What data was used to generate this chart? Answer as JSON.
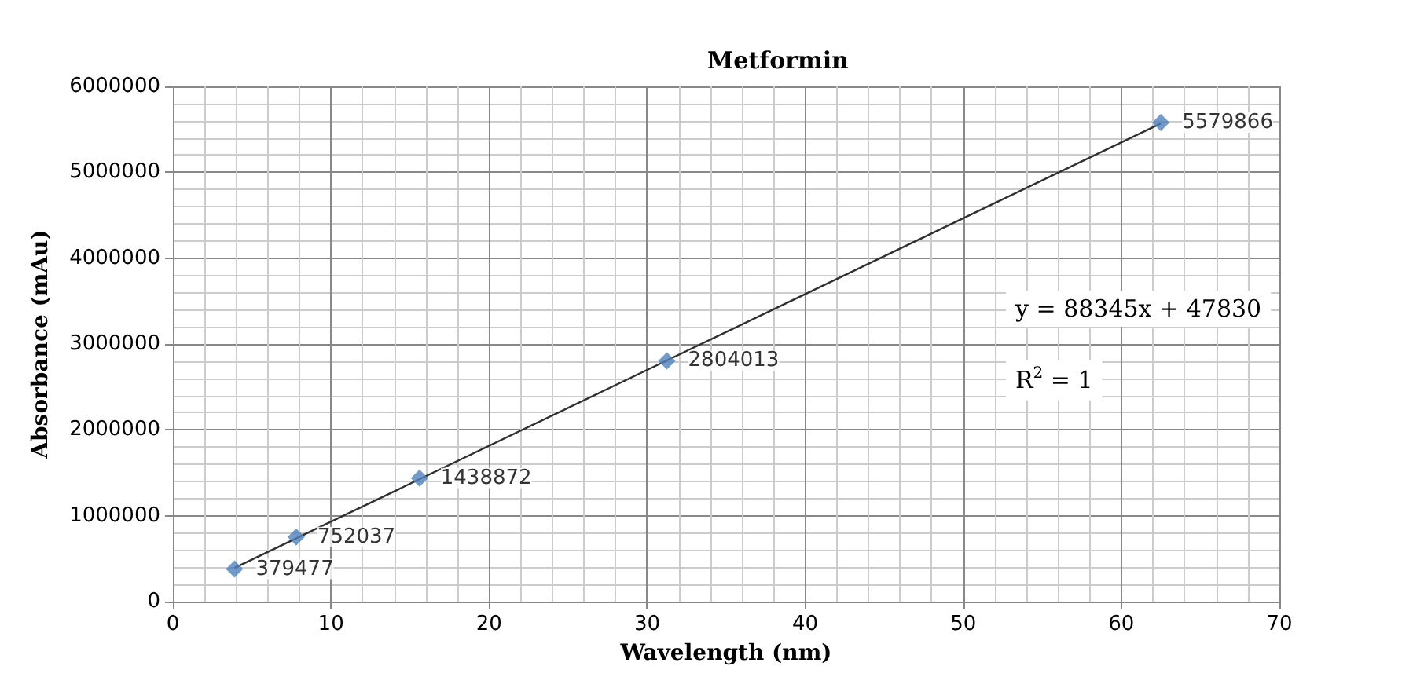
{
  "chart_data": {
    "type": "scatter",
    "title": "Metformin",
    "xlabel": "Wavelength (nm)",
    "ylabel": "Absorbance (mAu)",
    "series": [
      {
        "color": "#4f81bd",
        "x": [
          3.9,
          7.8,
          15.6,
          31.25,
          62.5
        ],
        "values": [
          379477,
          752037,
          1438872,
          2804013,
          5579866
        ],
        "value_labels": [
          "379477",
          "752037",
          "1438872",
          "2804013",
          "5579866"
        ],
        "marker": "diamond"
      },
      {
        "type": "line",
        "color": "#303030",
        "x": [
          3.9,
          62.5
        ],
        "values": [
          392000,
          5569000
        ],
        "marker": "none",
        "line_style": "solid"
      }
    ],
    "xlim": [
      0,
      70
    ],
    "xticks": [
      0,
      10,
      20,
      30,
      40,
      50,
      60,
      70
    ],
    "ylim": [
      0,
      6000000
    ],
    "yticks": [
      0,
      1000000,
      2000000,
      3000000,
      4000000,
      5000000,
      6000000
    ],
    "grid": true,
    "annotations": [
      "y = 88345x + 47830",
      "R$^{2}$ = 1"
    ]
  }
}
